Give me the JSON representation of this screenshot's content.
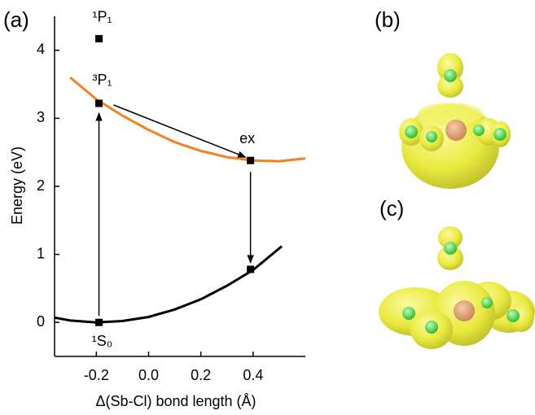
{
  "chart_data": {
    "type": "line",
    "panel_labels": [
      "(a)",
      "(b)",
      "(c)"
    ],
    "xlabel": "Δ(Sb-Cl) bond length (Å)",
    "ylabel": "Energy (eV)",
    "xlim": [
      -0.36,
      0.6
    ],
    "ylim": [
      -0.5,
      4.5
    ],
    "xticks": [
      -0.2,
      {
        "value": 0,
        "label": "0.0"
      },
      0.2,
      0.4
    ],
    "yticks": [
      0,
      1,
      2,
      3,
      4
    ],
    "series": [
      {
        "color": "#000000",
        "x": [
          -0.36,
          -0.3,
          -0.2,
          -0.1,
          0,
          0.1,
          0.2,
          0.3,
          0.4,
          0.51
        ],
        "values": [
          0.07,
          0.028,
          0.0,
          0.02,
          0.08,
          0.19,
          0.34,
          0.54,
          0.77,
          1.12
        ]
      },
      {
        "color": "#f58220",
        "x": [
          -0.3,
          -0.2,
          -0.1,
          0,
          0.1,
          0.2,
          0.3,
          0.4,
          0.5,
          0.6
        ],
        "values": [
          3.6,
          3.28,
          3.04,
          2.83,
          2.65,
          2.52,
          2.43,
          2.38,
          2.37,
          2.41
        ]
      }
    ],
    "points": {
      "color": "#000000",
      "x": [
        -0.19,
        -0.19,
        -0.19,
        0.39,
        0.39
      ],
      "values": [
        0,
        3.22,
        4.17,
        2.38,
        0.78
      ],
      "labels": [
        "¹S₀",
        "³P₁",
        "¹P₁",
        "ex",
        null
      ]
    }
  }
}
